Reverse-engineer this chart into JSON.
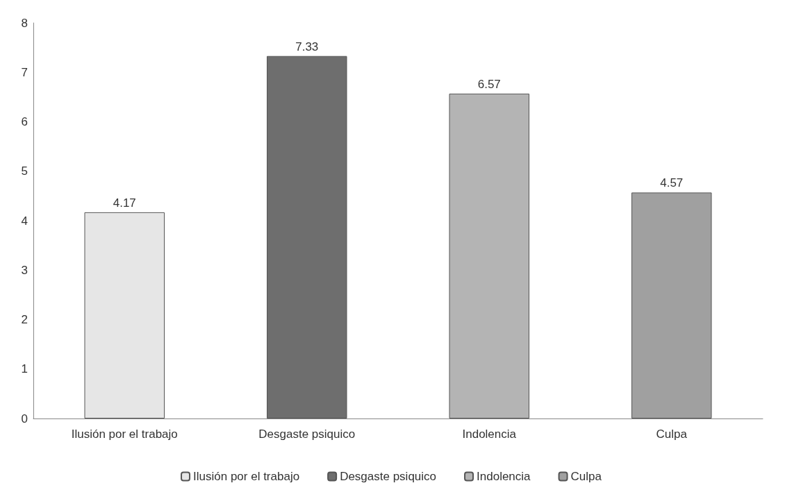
{
  "chart_data": {
    "type": "bar",
    "categories": [
      "Ilusión por el trabajo",
      "Desgaste psiquico",
      "Indolencia",
      "Culpa"
    ],
    "series": [
      {
        "name": "Ilusión por el trabajo",
        "color": "#e6e6e6",
        "values": [
          4.17,
          null,
          null,
          null
        ]
      },
      {
        "name": "Desgaste psiquico",
        "color": "#6e6e6e",
        "values": [
          null,
          7.33,
          null,
          null
        ]
      },
      {
        "name": "Indolencia",
        "color": "#b4b4b4",
        "values": [
          null,
          null,
          6.57,
          null
        ]
      },
      {
        "name": "Culpa",
        "color": "#a0a0a0",
        "values": [
          null,
          null,
          null,
          4.57
        ]
      }
    ],
    "ylim": [
      0,
      8
    ],
    "yticks": [
      0,
      1,
      2,
      3,
      4,
      5,
      6,
      7,
      8
    ],
    "grid": false,
    "legend": "bottom",
    "data_labels": true
  }
}
